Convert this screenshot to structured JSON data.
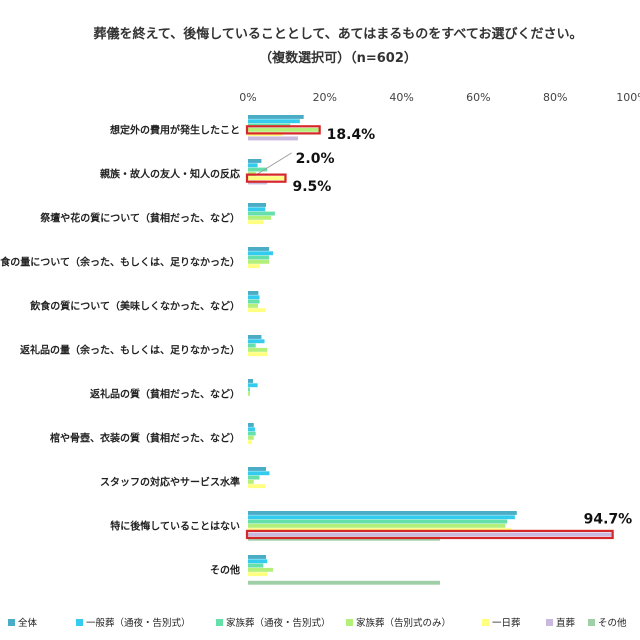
{
  "chart_data": {
    "type": "bar",
    "orientation": "horizontal",
    "title": "葬儀を終えて、後悔していることとして、あてはまるものをすべてお選びください。",
    "subtitle": "（複数選択可）（n=602）",
    "x_ticks": [
      "0%",
      "20%",
      "40%",
      "60%",
      "80%",
      "100%"
    ],
    "xlim": [
      0,
      100
    ],
    "grid": false,
    "legend_position": "bottom",
    "categories": [
      "想定外の費用が発生したこと",
      "親族・故人の友人・知人の反応",
      "祭壇や花の質について（貧相だった、など）",
      "飲食の量について（余った、もしくは、足りなかった）",
      "飲食の質について（美味しくなかった、など）",
      "返礼品の量（余った、もしくは、足りなかった）",
      "返礼品の質（貧相だった、など）",
      "棺や骨壺、衣装の質（貧相だった、など）",
      "スタッフの対応やサービス水準",
      "特に後悔していることはない",
      "その他"
    ],
    "series": [
      {
        "name": "全体",
        "color": "#4bacc6",
        "values": [
          14.5,
          3.5,
          4.7,
          5.5,
          2.7,
          3.5,
          1.3,
          1.5,
          4.7,
          70.0,
          4.7
        ]
      },
      {
        "name": "一般葬（通夜・告別式）",
        "color": "#33ccee",
        "values": [
          13.5,
          2.5,
          4.5,
          6.5,
          3.0,
          4.3,
          2.5,
          1.8,
          5.6,
          69.5,
          5.0
        ]
      },
      {
        "name": "家族葬（通夜・告別式）",
        "color": "#66e0aa",
        "values": [
          11.0,
          5.0,
          7.0,
          5.5,
          3.0,
          2.0,
          0.5,
          2.0,
          3.0,
          67.5,
          4.0
        ]
      },
      {
        "name": "家族葬（告別式のみ）",
        "color": "#b3f07a",
        "values": [
          18.4,
          2.0,
          6.0,
          5.5,
          2.6,
          5.0,
          0.5,
          1.5,
          1.5,
          67.0,
          6.5
        ]
      },
      {
        "name": "一日葬",
        "color": "#ffff80",
        "values": [
          9.0,
          9.5,
          4.0,
          3.0,
          4.5,
          5.0,
          0.0,
          1.0,
          4.5,
          68.5,
          5.0
        ]
      },
      {
        "name": "直葬",
        "color": "#c9b9de",
        "values": [
          13.0,
          5.0,
          0.0,
          0.0,
          0.0,
          0.0,
          0.0,
          0.0,
          0.0,
          94.7,
          0.0
        ]
      },
      {
        "name": "その他",
        "color": "#9fcfa7",
        "values": [
          0.0,
          0.0,
          0.0,
          0.0,
          0.0,
          0.0,
          0.0,
          0.0,
          0.0,
          50.0,
          50.0
        ]
      }
    ],
    "annotations": [
      {
        "text": "18.4%",
        "category": "想定外の費用が発生したこと",
        "series": "家族葬（告別式のみ）",
        "highlighted": true
      },
      {
        "text": "2.0%",
        "category": "親族・故人の友人・知人の反応",
        "series": "家族葬（告別式のみ）",
        "highlighted": false
      },
      {
        "text": "9.5%",
        "category": "親族・故人の友人・知人の反応",
        "series": "一日葬",
        "highlighted": true
      },
      {
        "text": "94.7%",
        "category": "特に後悔していることはない",
        "series": "直葬",
        "highlighted": true
      }
    ],
    "highlight_color": "#d62728"
  }
}
